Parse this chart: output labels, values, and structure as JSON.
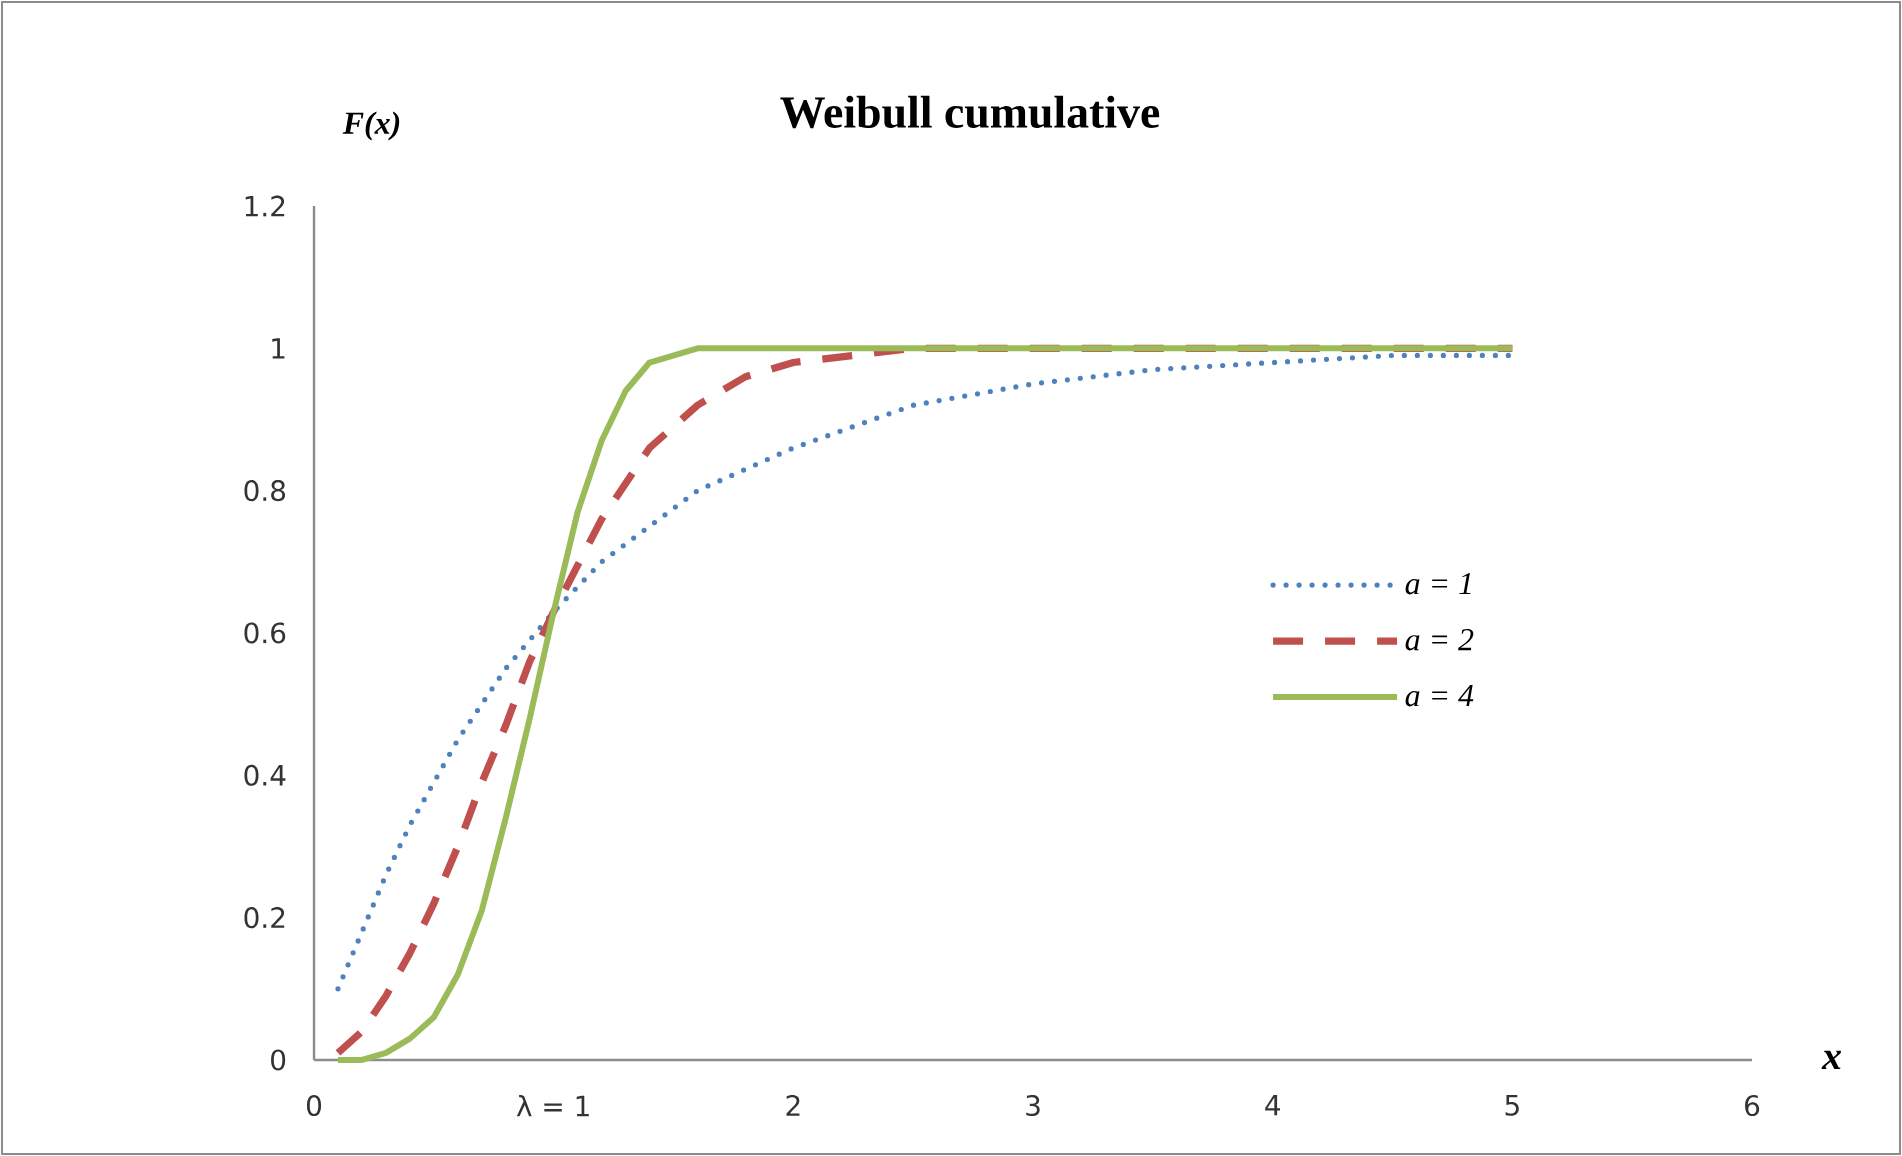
{
  "chart_data": {
    "type": "line",
    "title": "Weibull cumulative",
    "xlabel": "x",
    "ylabel": "F(x)",
    "xlim": [
      0,
      6
    ],
    "ylim": [
      0,
      1.2
    ],
    "xticks": [
      0,
      {
        "value": 1,
        "label": "λ = 1"
      },
      2,
      3,
      4,
      5,
      6
    ],
    "yticks": [
      0,
      0.2,
      0.4,
      0.6,
      0.8,
      1,
      1.2
    ],
    "grid": false,
    "legend": "right",
    "marker": "none",
    "series": [
      {
        "name": "a = 1",
        "color": "#4f81bd",
        "line_style": "dotted",
        "x": [
          0.1,
          0.2,
          0.3,
          0.4,
          0.5,
          0.6,
          0.7,
          0.8,
          0.9,
          1.0,
          1.2,
          1.4,
          1.6,
          1.8,
          2.0,
          2.5,
          3,
          3.5,
          4,
          4.5,
          5
        ],
        "values": [
          0.1,
          0.18,
          0.26,
          0.33,
          0.39,
          0.45,
          0.5,
          0.55,
          0.59,
          0.63,
          0.7,
          0.75,
          0.8,
          0.83,
          0.86,
          0.92,
          0.95,
          0.97,
          0.98,
          0.99,
          0.99
        ]
      },
      {
        "name": "a = 2",
        "color": "#c0504d",
        "line_style": "dashed",
        "x": [
          0.1,
          0.2,
          0.3,
          0.4,
          0.5,
          0.6,
          0.7,
          0.8,
          0.9,
          1.0,
          1.2,
          1.4,
          1.6,
          1.8,
          2.0,
          2.5,
          3,
          3.5,
          4,
          4.5,
          5
        ],
        "values": [
          0.01,
          0.04,
          0.09,
          0.15,
          0.22,
          0.3,
          0.39,
          0.47,
          0.56,
          0.63,
          0.76,
          0.86,
          0.92,
          0.96,
          0.98,
          1.0,
          1.0,
          1.0,
          1.0,
          1.0,
          1.0
        ]
      },
      {
        "name": "a = 4",
        "color": "#9bbb59",
        "line_style": "solid",
        "x": [
          0.1,
          0.2,
          0.3,
          0.4,
          0.5,
          0.6,
          0.7,
          0.8,
          0.9,
          1.0,
          1.1,
          1.2,
          1.3,
          1.4,
          1.6,
          1.8,
          2.0,
          2.5,
          3,
          3.5,
          4,
          4.5,
          5
        ],
        "values": [
          0,
          0,
          0.01,
          0.03,
          0.06,
          0.12,
          0.21,
          0.34,
          0.48,
          0.63,
          0.77,
          0.87,
          0.94,
          0.98,
          1.0,
          1.0,
          1.0,
          1.0,
          1.0,
          1.0,
          1.0,
          1.0,
          1.0
        ]
      }
    ]
  }
}
